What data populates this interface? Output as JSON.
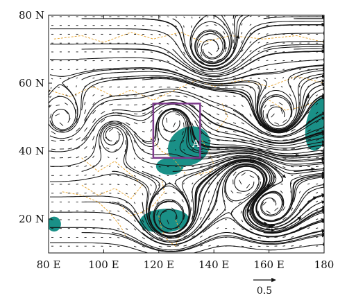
{
  "map": {
    "lon_range": [
      80,
      180
    ],
    "lat_range": [
      10,
      80
    ],
    "x_ticks": [
      {
        "value": 80,
        "label": "80 E"
      },
      {
        "value": 100,
        "label": "100 E"
      },
      {
        "value": 120,
        "label": "120 E"
      },
      {
        "value": 140,
        "label": "140 E"
      },
      {
        "value": 160,
        "label": "160 E"
      },
      {
        "value": 180,
        "label": "180"
      }
    ],
    "y_ticks": [
      {
        "value": 80,
        "label": "80 N"
      },
      {
        "value": 60,
        "label": "60 N"
      },
      {
        "value": 40,
        "label": "40 N"
      },
      {
        "value": 20,
        "label": "20 N"
      }
    ],
    "region_box": {
      "lon": [
        118,
        135
      ],
      "lat": [
        38,
        54
      ],
      "color": "#7d3a8c"
    },
    "region_label": "A",
    "reference_vector_label": "0.5",
    "shading_color": "#1a9087",
    "coastline_color": "#e8a93a",
    "streamline_color": "#111111",
    "shaded_regions": [
      {
        "lon": 131,
        "lat": 41.5,
        "rlon": 8,
        "rlat": 5.5,
        "rot": -32
      },
      {
        "lon": 124,
        "lat": 35.5,
        "rlon": 5,
        "rlat": 2.5,
        "rot": 0
      },
      {
        "lon": 122,
        "lat": 19.5,
        "rlon": 9,
        "rlat": 3.5,
        "rot": -4
      },
      {
        "lon": 82,
        "lat": 18.5,
        "rlon": 2.5,
        "rlat": 2.2,
        "rot": 0
      },
      {
        "lon": 178,
        "lat": 48,
        "rlon": 4.5,
        "rlat": 8,
        "rot": 12
      }
    ],
    "vortices": [
      {
        "lon": 85,
        "lat": 49,
        "dir": 1
      },
      {
        "lon": 139,
        "lat": 70,
        "dir": 1
      },
      {
        "lon": 163,
        "lat": 50,
        "dir": 1
      },
      {
        "lon": 152,
        "lat": 31,
        "dir": -1
      },
      {
        "lon": 160,
        "lat": 24,
        "dir": 1
      },
      {
        "lon": 124,
        "lat": 20,
        "dir": 1
      },
      {
        "lon": 125,
        "lat": 49,
        "dir": -1
      },
      {
        "lon": 103,
        "lat": 45,
        "dir": -1
      }
    ]
  }
}
